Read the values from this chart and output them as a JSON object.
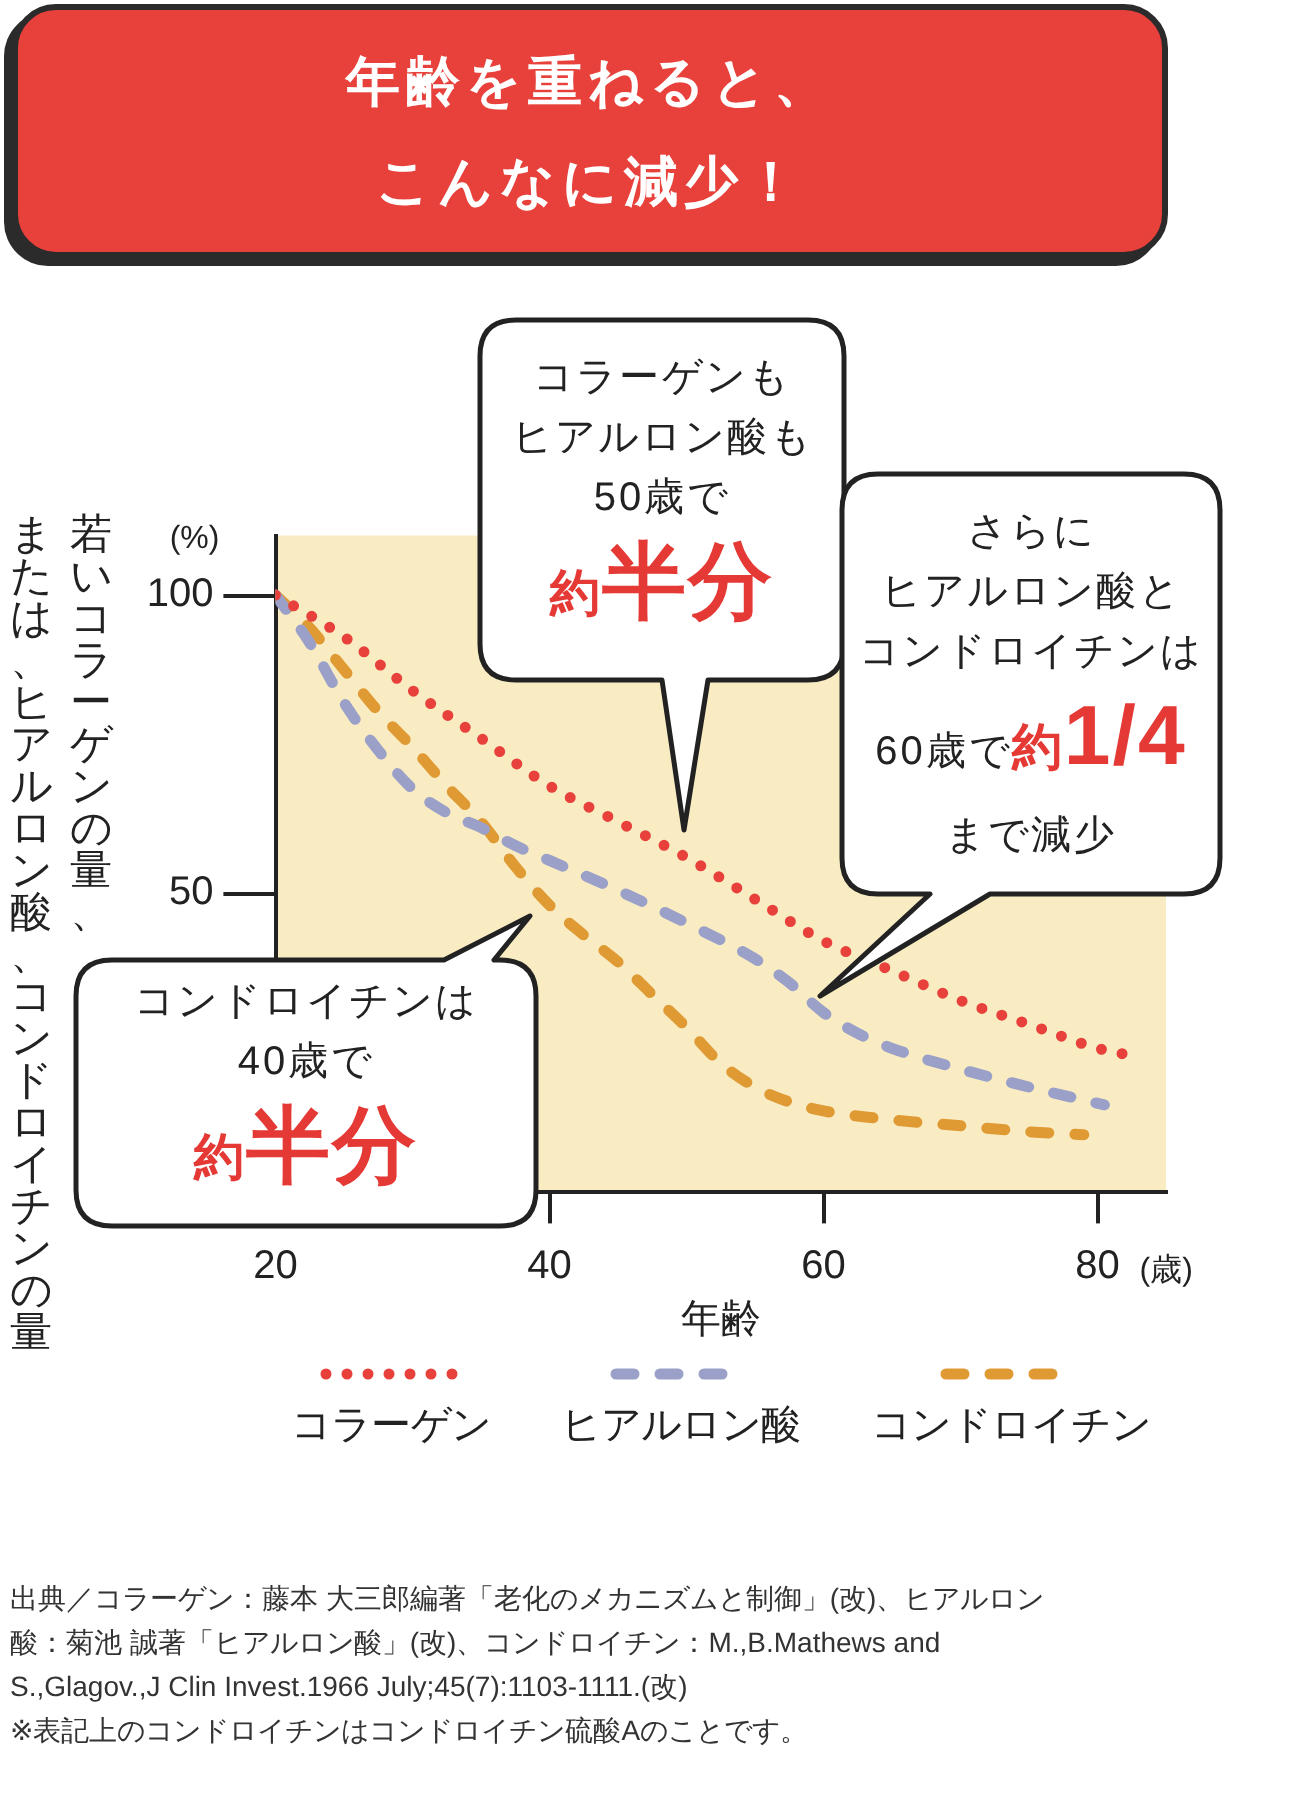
{
  "chart_data": {
    "type": "line",
    "title": "年齢を重ねると、こんなに減少！",
    "xlabel": "年齢",
    "ylabel": "若いコラーゲンの量、または、ヒアルロン酸、コンドロイチンの量",
    "xlim": [
      20,
      85
    ],
    "xticks": [
      20,
      40,
      60,
      80
    ],
    "ylim": [
      0,
      110
    ],
    "yticks": [
      50,
      100
    ],
    "legend": "bottom",
    "series": [
      {
        "name": "コラーゲン",
        "color": "#e8413c",
        "line_style": "dotted",
        "x": [
          20,
          25,
          30,
          35,
          40,
          45,
          50,
          55,
          60,
          65,
          70,
          75,
          80,
          82
        ],
        "values": [
          100,
          93,
          84,
          76,
          68,
          62,
          56,
          49,
          42,
          37,
          32,
          28,
          24,
          23
        ]
      },
      {
        "name": "ヒアルロン酸",
        "color": "#9aa0c8",
        "line_style": "dashed",
        "x": [
          20,
          22.5,
          25,
          27.5,
          30,
          32.5,
          35,
          37.5,
          40,
          45,
          50,
          55,
          57.5,
          60,
          62.5,
          65,
          70,
          75,
          80.5
        ],
        "values": [
          100,
          92,
          82,
          74,
          67.5,
          63.5,
          61,
          58,
          55.5,
          50.5,
          45,
          39,
          35,
          30,
          26.5,
          24,
          20.5,
          17.5,
          14.5
        ]
      },
      {
        "name": "コンドロイチン",
        "color": "#e09a33",
        "line_style": "dashed",
        "x": [
          20,
          22.5,
          25,
          27.5,
          30,
          32.5,
          35,
          37.5,
          40,
          42.5,
          45,
          47.5,
          50,
          52.5,
          55,
          57.5,
          60,
          65,
          70,
          75,
          79
        ],
        "values": [
          100,
          94.5,
          87.5,
          80.5,
          74.5,
          68,
          62,
          54.5,
          48,
          43,
          38.5,
          33,
          27.5,
          21.5,
          17.5,
          15,
          13.5,
          12,
          11,
          10,
          9.5
        ]
      }
    ],
    "annotations": [
      "コラーゲンも",
      "ヒアルロン酸も",
      "50歳で",
      "約半分",
      "さらに",
      "ヒアルロン酸と",
      "コンドロイチンは",
      "60歳で",
      "約1/4",
      "まで減少",
      "(%)",
      "コンドロイチンは",
      "40歳で",
      "約半分",
      "(歳)",
      "出典／コラーゲン：藤本 大三郎編著「老化のメカニズムと制御」(改)、ヒアルロン酸：菊池 誠著「ヒアルロン酸」(改)、コンドロイチン：M.,B.Mathews and S.,Glagov.,J Clin Invest.1966 July;45(7):1103-1111.(改)",
      "※表記上のコンドロイチンはコンドロイチン硫酸Aのことです。"
    ]
  }
}
